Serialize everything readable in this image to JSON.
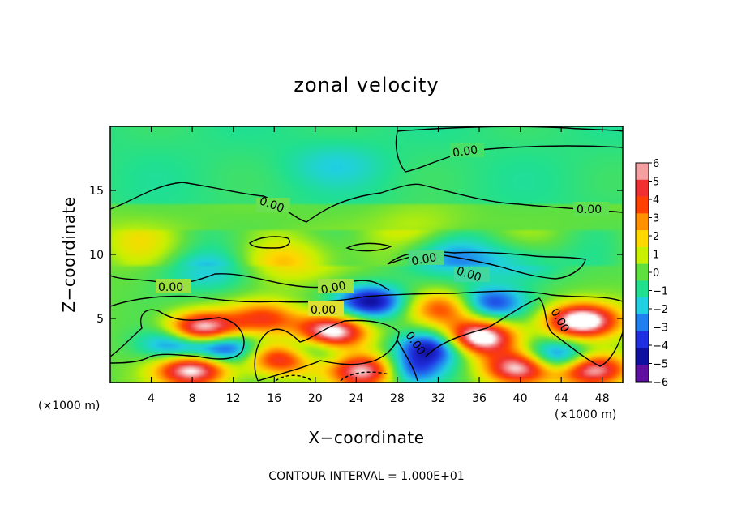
{
  "chart_data": {
    "type": "heatmap",
    "title": "zonal velocity",
    "xlabel": "X−coordinate",
    "ylabel": "Z−coordinate",
    "x_units": "(×1000 m)",
    "xlim": [
      0,
      50
    ],
    "ylim": [
      0,
      20
    ],
    "x_ticks": [
      4,
      8,
      12,
      16,
      20,
      24,
      28,
      32,
      36,
      40,
      44,
      48
    ],
    "y_ticks": [
      5,
      10,
      15
    ],
    "colorbar": {
      "levels": [
        6,
        5,
        4,
        3,
        2,
        1,
        0,
        -1,
        -2,
        -3,
        -4,
        -5,
        -6
      ],
      "labels": [
        "6",
        "5",
        "4",
        "3",
        "2",
        "1",
        "0",
        "−1",
        "−2",
        "−3",
        "−4",
        "−5",
        "−6"
      ],
      "colors": [
        "#f4a0a0",
        "#f03030",
        "#ff4000",
        "#ff9000",
        "#ffd800",
        "#c8f000",
        "#60e040",
        "#20e090",
        "#20d0e0",
        "#2080f0",
        "#2030e0",
        "#1010a0",
        "#6010a0"
      ]
    },
    "contour_label": "0.00",
    "contour_interval_text": "CONTOUR INTERVAL = 1.000E+01",
    "features": [
      {
        "x": 9,
        "z": 4.1,
        "u": 8
      },
      {
        "x": 21.5,
        "z": 3.9,
        "u": 8
      },
      {
        "x": 36,
        "z": 3.5,
        "u": 8
      },
      {
        "x": 46,
        "z": 4.8,
        "u": 8
      },
      {
        "x": 17,
        "z": 2.0,
        "u": 7
      },
      {
        "x": 8,
        "z": 1.0,
        "u": 7
      },
      {
        "x": 40,
        "z": 1.2,
        "u": 7
      },
      {
        "x": 25,
        "z": 0.9,
        "u": 7
      },
      {
        "x": 47,
        "z": 1.0,
        "u": 7
      },
      {
        "x": 32.5,
        "z": 5.8,
        "u": 4
      },
      {
        "x": 15,
        "z": 5.0,
        "u": 4
      },
      {
        "x": 17,
        "z": 9.4,
        "u": 2
      },
      {
        "x": 25.5,
        "z": 6.3,
        "u": -5
      },
      {
        "x": 37,
        "z": 6.2,
        "u": -4
      },
      {
        "x": 11,
        "z": 2.8,
        "u": -5
      },
      {
        "x": 6.5,
        "z": 3.0,
        "u": -4
      },
      {
        "x": 19,
        "z": 2.6,
        "u": -5
      },
      {
        "x": 31.5,
        "z": 2.8,
        "u": -5
      },
      {
        "x": 43.5,
        "z": 1.9,
        "u": -5
      },
      {
        "x": 29,
        "z": 1.0,
        "u": -4
      },
      {
        "x": 9.5,
        "z": 8.6,
        "u": -2
      },
      {
        "x": 40,
        "z": 9.4,
        "u": -2
      },
      {
        "x": 33,
        "z": 9.7,
        "u": -2
      },
      {
        "x": 22,
        "z": 17,
        "u": -1
      },
      {
        "x": 2,
        "z": 11,
        "u": 1
      },
      {
        "x": 30,
        "z": 12,
        "u": 1
      }
    ]
  }
}
